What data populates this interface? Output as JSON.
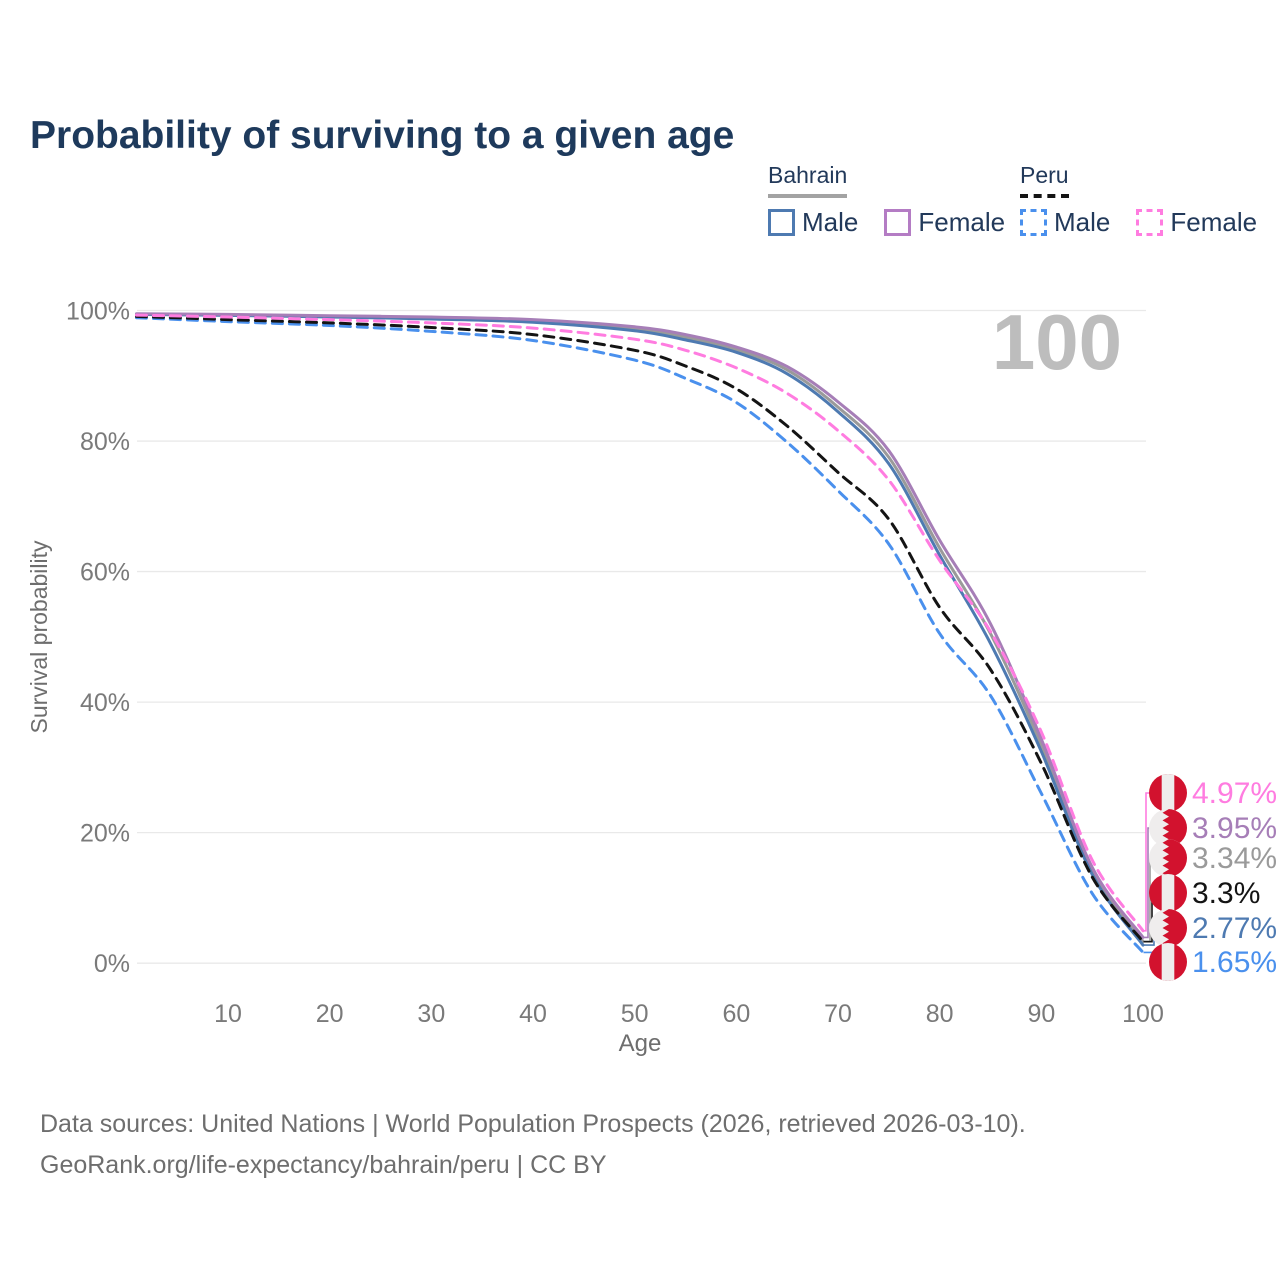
{
  "title": "Probability of surviving to a given age",
  "watermark": "100",
  "legend": {
    "groups": [
      {
        "name": "Bahrain",
        "line_style": "solid",
        "underline_color": "#a3a3a3",
        "items": [
          {
            "label": "Male",
            "color": "#4e7ab1",
            "dashed": false
          },
          {
            "label": "Female",
            "color": "#b47cc4",
            "dashed": false
          }
        ]
      },
      {
        "name": "Peru",
        "line_style": "dashed",
        "underline_color": "#141414",
        "items": [
          {
            "label": "Male",
            "color": "#4a90ed",
            "dashed": true
          },
          {
            "label": "Female",
            "color": "#ff7ce0",
            "dashed": true
          }
        ]
      }
    ]
  },
  "axes": {
    "x_label": "Age",
    "y_label": "Survival probability",
    "x_ticks": [
      10,
      20,
      30,
      40,
      50,
      60,
      70,
      80,
      90,
      100
    ],
    "y_ticks": [
      {
        "value": 0,
        "label": "0%"
      },
      {
        "value": 20,
        "label": "20%"
      },
      {
        "value": 40,
        "label": "40%"
      },
      {
        "value": 60,
        "label": "60%"
      },
      {
        "value": 80,
        "label": "80%"
      },
      {
        "value": 100,
        "label": "100%"
      }
    ]
  },
  "chart_data": {
    "type": "line",
    "title": "Probability of surviving to a given age",
    "xlabel": "Age",
    "ylabel": "Survival probability",
    "xlim": [
      1,
      100
    ],
    "ylim": [
      0,
      100
    ],
    "grid": "horizontal",
    "x": [
      1,
      10,
      20,
      30,
      40,
      50,
      55,
      60,
      65,
      70,
      75,
      80,
      85,
      90,
      95,
      100
    ],
    "series": [
      {
        "name": "Bahrain",
        "country": "Bahrain",
        "sex": "both",
        "color": "#9a9a9a",
        "dashed": false,
        "values": [
          99.45,
          99.3,
          99.1,
          98.8,
          98.4,
          97.2,
          95.9,
          94.0,
          90.9,
          85.2,
          77.5,
          63.6,
          50.5,
          33.4,
          14.2,
          3.34
        ]
      },
      {
        "name": "Bahrain Male",
        "country": "Bahrain",
        "sex": "male",
        "color": "#4e7ab1",
        "dashed": false,
        "values": [
          99.4,
          99.25,
          99.0,
          98.7,
          98.2,
          96.9,
          95.5,
          93.6,
          90.3,
          84.5,
          76.5,
          62.5,
          49.0,
          32.4,
          13.6,
          2.77
        ]
      },
      {
        "name": "Bahrain Female",
        "country": "Bahrain",
        "sex": "female",
        "color": "#a67eb7",
        "dashed": false,
        "values": [
          99.5,
          99.4,
          99.2,
          99.0,
          98.6,
          97.5,
          96.3,
          94.4,
          91.4,
          86.0,
          78.5,
          64.8,
          52.0,
          34.3,
          14.7,
          3.95
        ]
      },
      {
        "name": "Peru Male",
        "country": "Peru",
        "sex": "male",
        "color": "#4a90ed",
        "dashed": true,
        "values": [
          98.9,
          98.3,
          97.7,
          96.8,
          95.4,
          92.4,
          89.6,
          85.9,
          79.8,
          72.4,
          64.2,
          50.5,
          41.0,
          26.0,
          10.7,
          1.65
        ]
      },
      {
        "name": "Peru",
        "country": "Peru",
        "sex": "both",
        "color": "#141414",
        "dashed": true,
        "values": [
          99.1,
          98.6,
          98.1,
          97.4,
          96.3,
          93.9,
          91.5,
          88.0,
          82.3,
          75.2,
          68.0,
          54.5,
          45.0,
          30.6,
          13.2,
          3.3
        ]
      },
      {
        "name": "Peru Female",
        "country": "Peru",
        "sex": "female",
        "color": "#ff7ce0",
        "dashed": true,
        "values": [
          99.3,
          99.0,
          98.6,
          98.1,
          97.3,
          95.6,
          93.9,
          91.2,
          87.3,
          81.6,
          74.0,
          61.7,
          50.8,
          35.4,
          15.8,
          4.97
        ]
      }
    ]
  },
  "end_labels": [
    {
      "text": "4.97%",
      "series": "Peru Female",
      "flag": "peru",
      "color": "#ff7ce0",
      "value": 4.97
    },
    {
      "text": "3.95%",
      "series": "Bahrain Female",
      "flag": "bahrain",
      "color": "#a67eb7",
      "value": 3.95
    },
    {
      "text": "3.34%",
      "series": "Bahrain",
      "flag": "bahrain",
      "color": "#9a9a9a",
      "value": 3.34
    },
    {
      "text": "3.3%",
      "series": "Peru",
      "flag": "peru",
      "color": "#141414",
      "value": 3.3
    },
    {
      "text": "2.77%",
      "series": "Bahrain Male",
      "flag": "bahrain",
      "color": "#4e7ab1",
      "value": 2.77
    },
    {
      "text": "1.65%",
      "series": "Peru Male",
      "flag": "peru",
      "color": "#4a90ed",
      "value": 1.65
    }
  ],
  "flag_colors": {
    "red": "#d2122e",
    "white": "#efeded"
  },
  "footer": {
    "line1": "Data sources: United Nations | World Population Prospects (2026, retrieved 2026-03-10).",
    "line2": "GeoRank.org/life-expectancy/bahrain/peru | CC BY"
  }
}
